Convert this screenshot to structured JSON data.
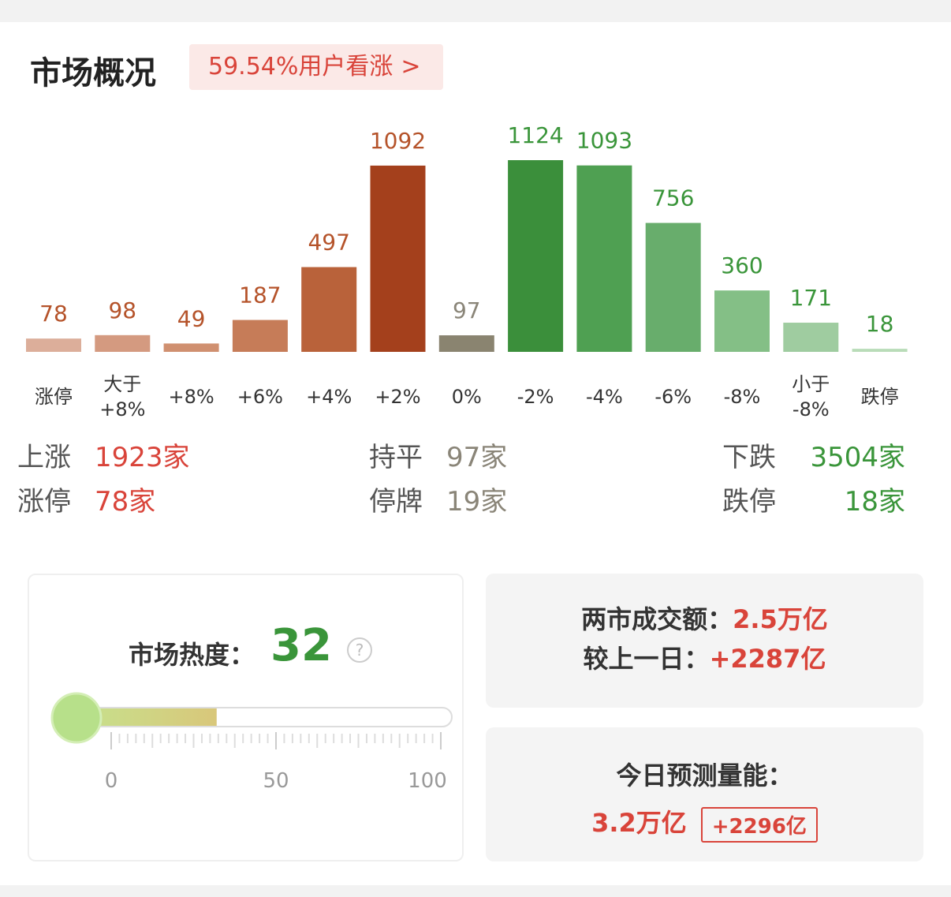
{
  "header": {
    "title": "市场概况",
    "badge": "59.54%用户看涨"
  },
  "chart_data": {
    "type": "bar",
    "categories": [
      "涨停",
      "大于 +8%",
      "+8%",
      "+6%",
      "+4%",
      "+2%",
      "0%",
      "-2%",
      "-4%",
      "-6%",
      "-8%",
      "小于 -8%",
      "跌停"
    ],
    "values": [
      78,
      98,
      49,
      187,
      497,
      1092,
      97,
      1124,
      1093,
      756,
      360,
      171,
      18
    ],
    "colors": [
      "#dcae9a",
      "#d49a80",
      "#d09070",
      "#c67c58",
      "#b9623a",
      "#a4401c",
      "#8a8470",
      "#3b8f3b",
      "#4fa052",
      "#68ad6c",
      "#84bf86",
      "#9fcca0",
      "#b9dcb8"
    ],
    "label_colors": [
      "#b5532a",
      "#b5532a",
      "#b5532a",
      "#b5532a",
      "#b5532a",
      "#b5532a",
      "#8a8578",
      "#3a953a",
      "#3a953a",
      "#3a953a",
      "#3a953a",
      "#3a953a",
      "#3a953a"
    ]
  },
  "summary": {
    "rows": [
      [
        {
          "label": "上涨",
          "value": "1923家"
        },
        {
          "label": "持平",
          "value": "97家"
        },
        {
          "label": "下跌",
          "value": "3504家"
        }
      ],
      [
        {
          "label": "涨停",
          "value": "78家"
        },
        {
          "label": "停牌",
          "value": "19家"
        },
        {
          "label": "跌停",
          "value": "18家"
        }
      ]
    ]
  },
  "heat": {
    "label": "市场热度：",
    "value": 32,
    "xlim": [
      0,
      100
    ],
    "xticks": [
      0,
      50,
      100
    ]
  },
  "turnover": {
    "label": "两市成交额：",
    "value": "2.5万亿",
    "compare_label": "较上一日：",
    "compare_value": "+2287亿"
  },
  "forecast": {
    "label": "今日预测量能：",
    "value": "3.2万亿",
    "change": "+2296亿"
  }
}
